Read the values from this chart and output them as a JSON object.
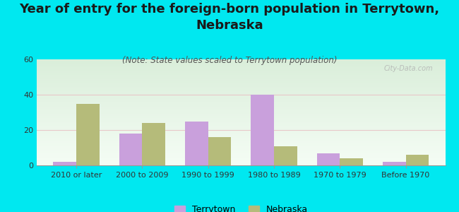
{
  "title": "Year of entry for the foreign-born population in Terrytown,\nNebraska",
  "subtitle": "(Note: State values scaled to Terrytown population)",
  "categories": [
    "2010 or later",
    "2000 to 2009",
    "1990 to 1999",
    "1980 to 1989",
    "1970 to 1979",
    "Before 1970"
  ],
  "terrytown_values": [
    2,
    18,
    25,
    40,
    7,
    2
  ],
  "nebraska_values": [
    35,
    24,
    16,
    11,
    4,
    6
  ],
  "terrytown_color": "#c9a0dc",
  "nebraska_color": "#b5bb7a",
  "background_outer": "#00e8f0",
  "background_plot_top": "#f0f8f0",
  "background_plot_bottom": "#c8e8c8",
  "ylim": [
    0,
    60
  ],
  "yticks": [
    0,
    20,
    40,
    60
  ],
  "bar_width": 0.35,
  "title_fontsize": 13,
  "subtitle_fontsize": 8.5,
  "tick_fontsize": 8,
  "legend_labels": [
    "Terrytown",
    "Nebraska"
  ],
  "watermark": "City-Data.com"
}
